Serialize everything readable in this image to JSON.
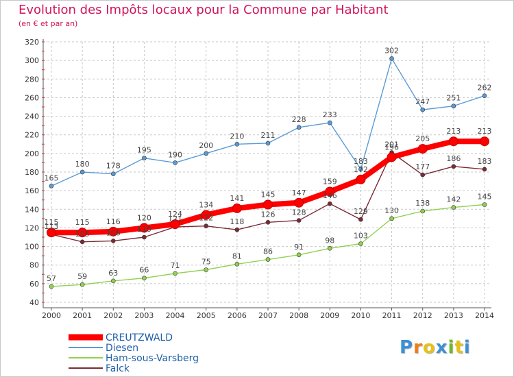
{
  "header": {
    "title": "Evolution des Impôts locaux pour la Commune par Habitant",
    "subtitle": "(en € et par an)"
  },
  "brand": {
    "logo_text": "Proxiti",
    "logo_colors": [
      "#3b8fd6",
      "#f07c17",
      "#e8c118",
      "#3b8fd6",
      "#6bb82a",
      "#e8c118",
      "#3b8fd6"
    ]
  },
  "chart_data": {
    "type": "line",
    "x": [
      2000,
      2001,
      2002,
      2003,
      2004,
      2005,
      2006,
      2007,
      2008,
      2009,
      2010,
      2011,
      2012,
      2013,
      2014
    ],
    "ylim": [
      40,
      320
    ],
    "yticks": [
      40,
      60,
      80,
      100,
      120,
      140,
      160,
      180,
      200,
      220,
      240,
      260,
      280,
      300,
      320
    ],
    "grid": true,
    "legend_position": "bottom-left",
    "series": [
      {
        "name": "Diesen",
        "color": "#5b9bd5",
        "values": [
          165,
          180,
          178,
          195,
          190,
          200,
          210,
          211,
          228,
          233,
          183,
          302,
          247,
          251,
          262
        ]
      },
      {
        "name": "Ham-sous-Varsberg",
        "color": "#92d050",
        "values": [
          57,
          59,
          63,
          66,
          71,
          75,
          81,
          86,
          91,
          98,
          103,
          130,
          138,
          142,
          145
        ]
      },
      {
        "name": "Falck",
        "color": "#7a2b36",
        "values": [
          113,
          105,
          106,
          110,
          121,
          122,
          118,
          126,
          128,
          146,
          129,
          201,
          177,
          186,
          183
        ]
      },
      {
        "name": "CREUTZWALD",
        "color": "#ff0000",
        "values": [
          115,
          115,
          116,
          120,
          124,
          134,
          141,
          145,
          147,
          159,
          172,
          196,
          205,
          213,
          213
        ]
      }
    ]
  }
}
